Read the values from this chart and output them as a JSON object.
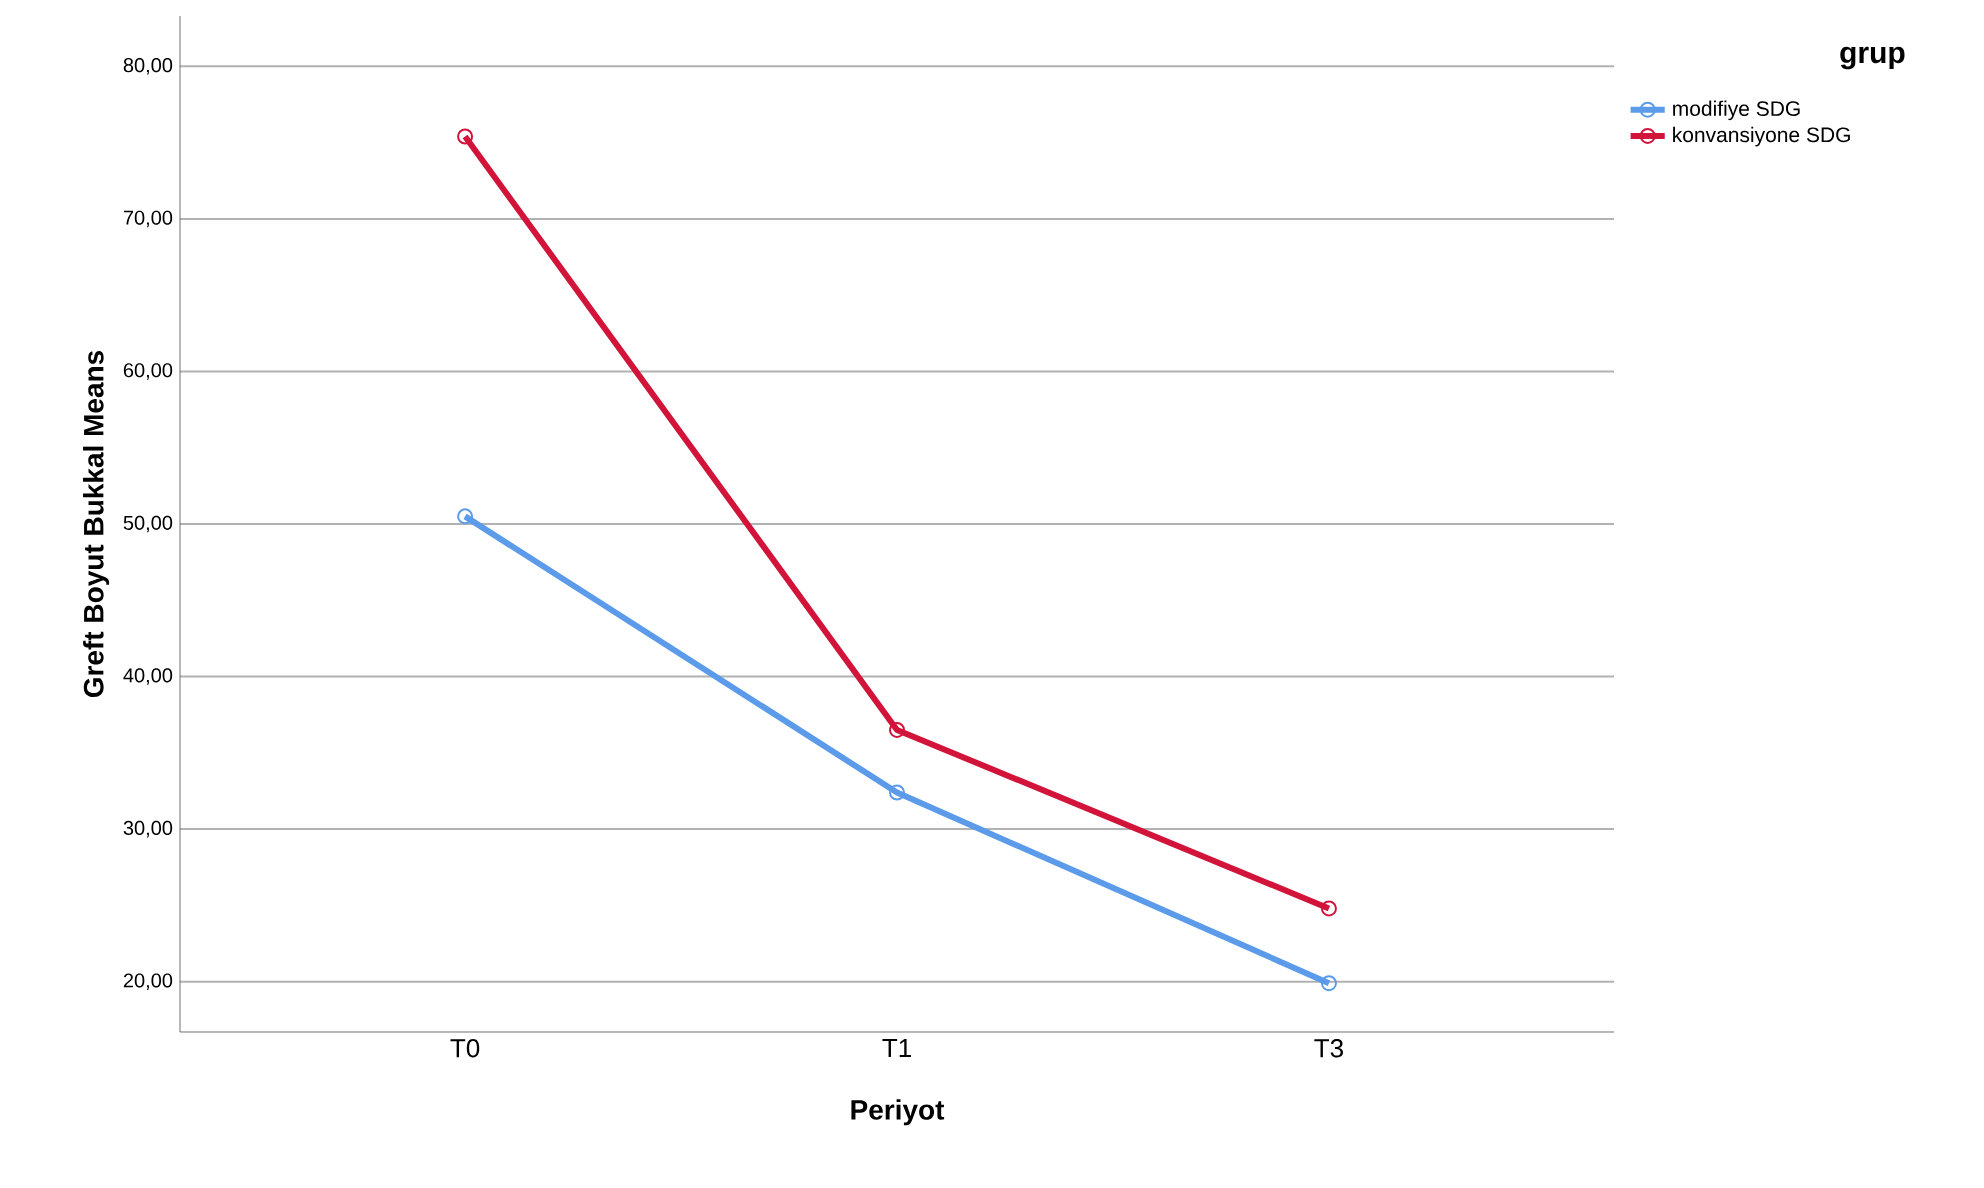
{
  "chart_data": {
    "type": "line",
    "xlabel": "Periyot",
    "ylabel": "Greft Boyut Bukkal Means",
    "legend_title": "grup",
    "categories": [
      "T0",
      "T1",
      "T3"
    ],
    "series": [
      {
        "name": "modifiye SDG",
        "color": "#5b9bea",
        "values": [
          50.5,
          32.4,
          19.9
        ]
      },
      {
        "name": "konvansiyone SDG",
        "color": "#d2143a",
        "values": [
          75.4,
          36.5,
          24.8
        ]
      }
    ],
    "ylim": [
      16.7,
      83.3
    ],
    "yticks": [
      {
        "value": 20,
        "label": "20,00"
      },
      {
        "value": 30,
        "label": "30,00"
      },
      {
        "value": 40,
        "label": "40,00"
      },
      {
        "value": 50,
        "label": "50,00"
      },
      {
        "value": 60,
        "label": "60,00"
      },
      {
        "value": 70,
        "label": "70,00"
      },
      {
        "value": 80,
        "label": "80,00"
      }
    ],
    "grid": "y",
    "legend": "top right",
    "marker": "circle",
    "line_style": "solid"
  }
}
